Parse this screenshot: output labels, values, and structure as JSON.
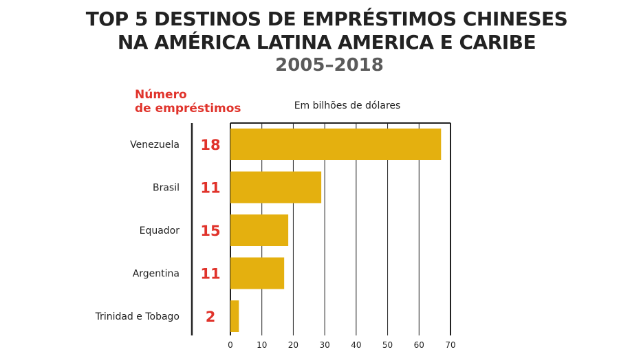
{
  "chart_data": {
    "type": "bar",
    "orientation": "horizontal",
    "title_lines": [
      "TOP 5 DESTINOS DE EMPRÉSTIMOS CHINESES",
      "NA AMÉRICA LATINA AMERICA E CARIBE"
    ],
    "subtitle": "2005–2018",
    "xlabel": "Em bilhões de dólares",
    "count_header_lines": [
      "Número",
      "de empréstimos"
    ],
    "categories": [
      "Venezuela",
      "Brasil",
      "Equador",
      "Argentina",
      "Trinidad e Tobago"
    ],
    "values": [
      67,
      28.9,
      18.4,
      17.1,
      2.7
    ],
    "loan_counts": [
      "18",
      "11",
      "15",
      "11",
      "2"
    ],
    "xlim": [
      0,
      70
    ],
    "xticks": [
      0,
      10,
      20,
      30,
      40,
      50,
      60,
      70
    ],
    "grid": true,
    "bar_color": "#e4b00f",
    "count_color": "#e0332b"
  }
}
